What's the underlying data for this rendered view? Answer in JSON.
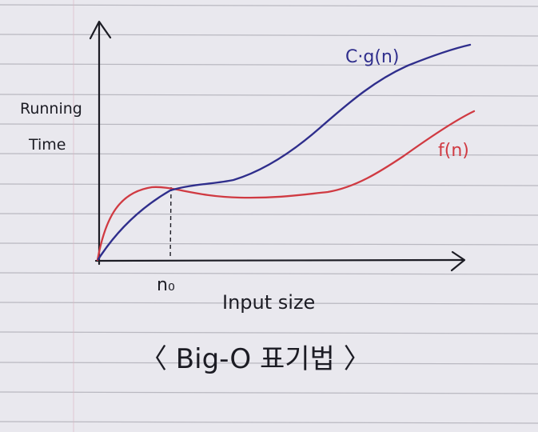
{
  "labels": {
    "y_axis_line1": "Running",
    "y_axis_line2": "Time",
    "x_axis": "Input size",
    "n0": "n₀",
    "bound_curve": "C·g(n)",
    "function_curve": "f(n)",
    "caption": "〈 Big-O 표기법 〉"
  },
  "colors": {
    "paper": "#e9e8ee",
    "rule_line": "#b9b8c0",
    "margin_line": "#d9b9c4",
    "ink": "#1c1c24",
    "bound_curve": "#2f2e8c",
    "function_curve": "#d03a42"
  },
  "icons": {
    "y_axis_arrow": "arrow-up",
    "x_axis_arrow": "arrow-right"
  }
}
